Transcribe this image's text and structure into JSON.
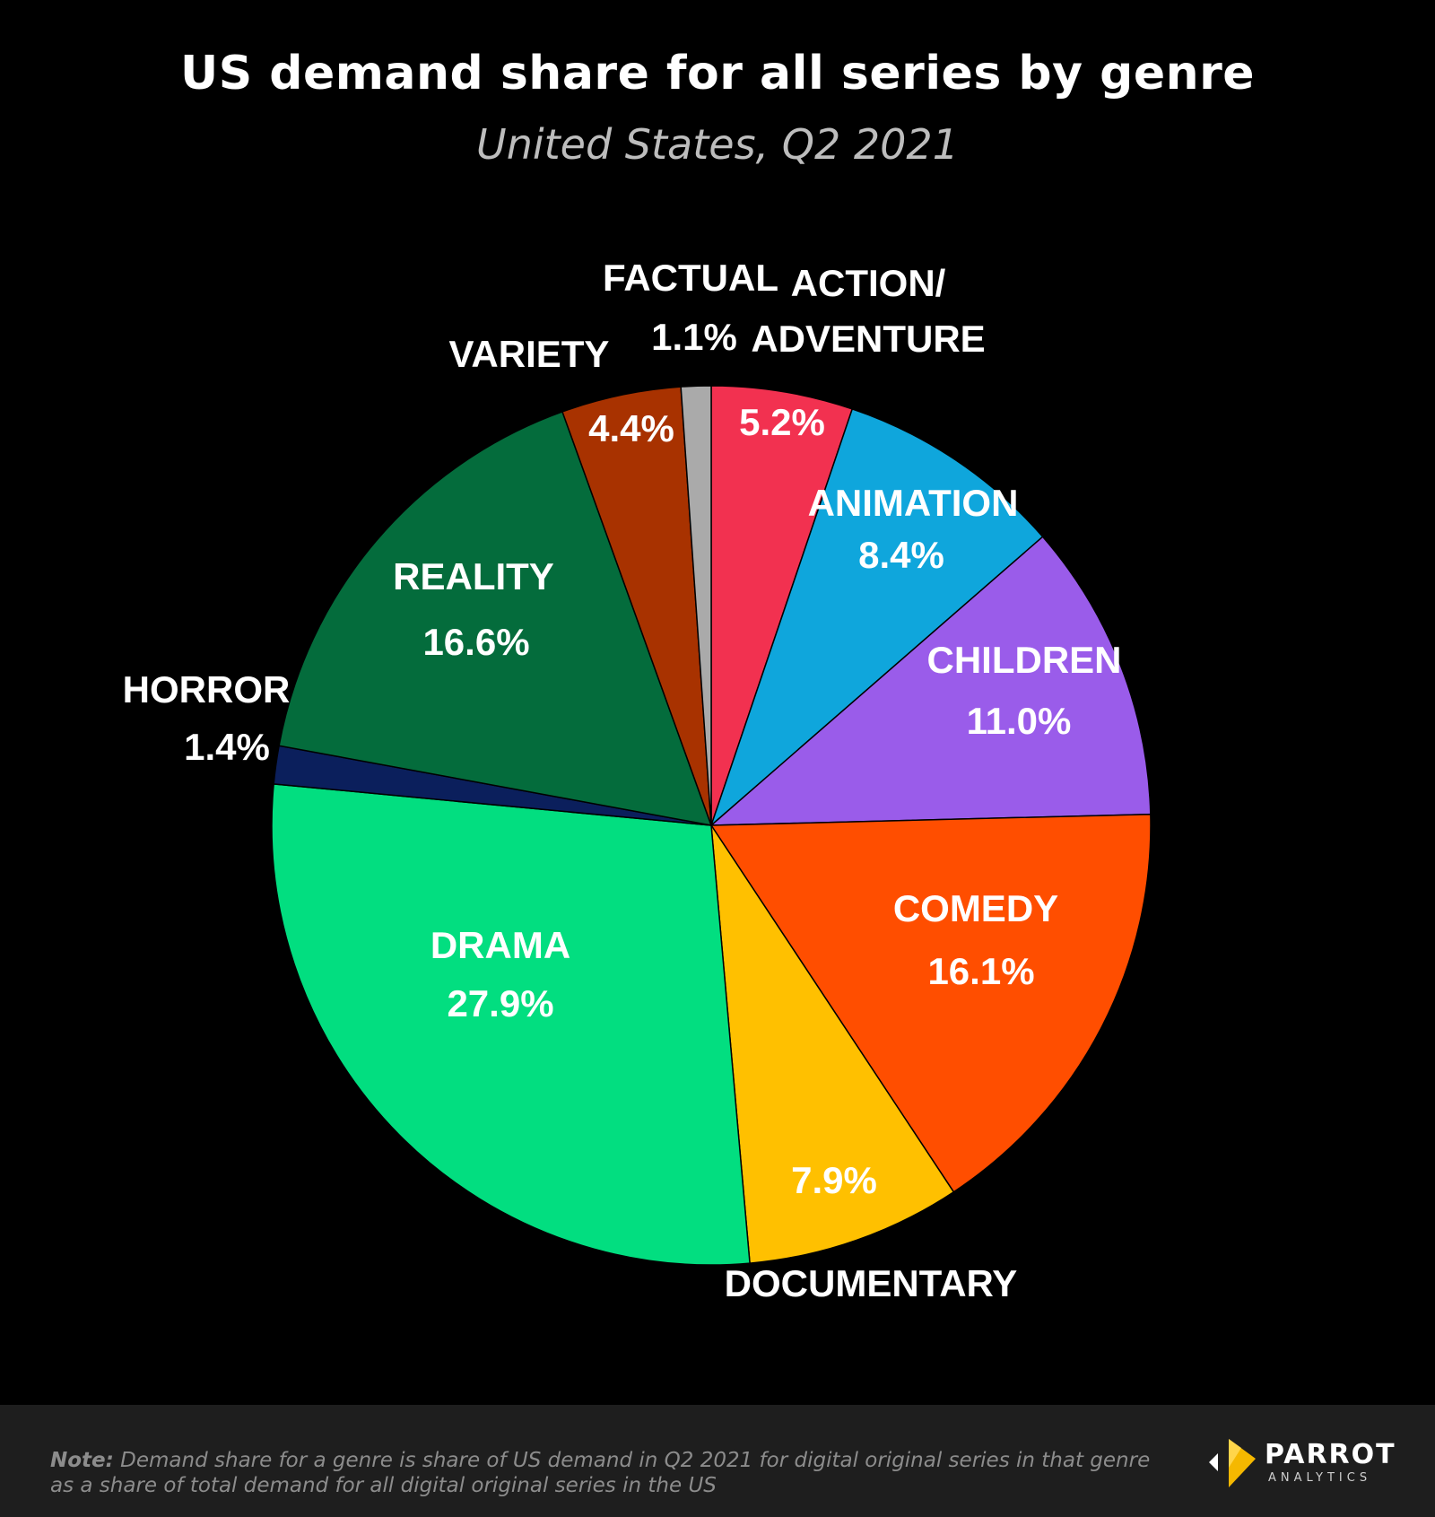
{
  "title": "US demand share for all series by genre",
  "subtitle": "United States, Q2 2021",
  "chart_data": {
    "type": "pie",
    "title": "US demand share for all series by genre",
    "subtitle": "United States, Q2 2021",
    "unit": "%",
    "slices": [
      {
        "name": "ACTION/ ADVENTURE",
        "label_lines": [
          "ACTION/",
          "ADVENTURE"
        ],
        "value": 5.2,
        "value_label": "5.2%",
        "color": "#f23150"
      },
      {
        "name": "ANIMATION",
        "label_lines": [
          "ANIMATION"
        ],
        "value": 8.4,
        "value_label": "8.4%",
        "color": "#0fa6dc"
      },
      {
        "name": "CHILDREN",
        "label_lines": [
          "CHILDREN"
        ],
        "value": 11.0,
        "value_label": "11.0%",
        "color": "#9a5cea"
      },
      {
        "name": "COMEDY",
        "label_lines": [
          "COMEDY"
        ],
        "value": 16.1,
        "value_label": "16.1%",
        "color": "#ff4e00"
      },
      {
        "name": "DOCUMENTARY",
        "label_lines": [
          "DOCUMENTARY"
        ],
        "value": 7.9,
        "value_label": "7.9%",
        "color": "#ffc000"
      },
      {
        "name": "DRAMA",
        "label_lines": [
          "DRAMA"
        ],
        "value": 27.9,
        "value_label": "27.9%",
        "color": "#02de80"
      },
      {
        "name": "HORROR",
        "label_lines": [
          "HORROR"
        ],
        "value": 1.4,
        "value_label": "1.4%",
        "color": "#0b1f5c"
      },
      {
        "name": "REALITY",
        "label_lines": [
          "REALITY"
        ],
        "value": 16.6,
        "value_label": "16.6%",
        "color": "#046c3c"
      },
      {
        "name": "VARIETY",
        "label_lines": [
          "VARIETY"
        ],
        "value": 4.4,
        "value_label": "4.4%",
        "color": "#a83200"
      },
      {
        "name": "FACTUAL",
        "label_lines": [
          "FACTUAL"
        ],
        "value": 1.1,
        "value_label": "1.1%",
        "color": "#aaaaaa"
      }
    ]
  },
  "footer": {
    "note_label": "Note:",
    "note_text": "Demand share for a genre is share of US demand in Q2 2021 for digital original series in that genre as a share of total demand for all digital original series in the US",
    "logo_name": "PARROT",
    "logo_sub": "ANALYTICS"
  }
}
